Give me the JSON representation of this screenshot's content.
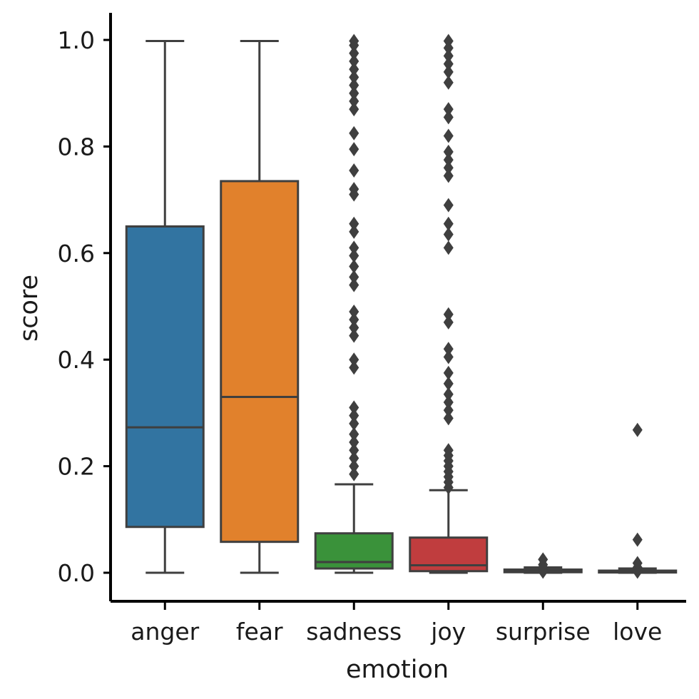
{
  "chart_data": {
    "type": "box",
    "xlabel": "emotion",
    "ylabel": "score",
    "ylim": [
      -0.05,
      1.05
    ],
    "yticks": [
      "0.0",
      "0.2",
      "0.4",
      "0.6",
      "0.8",
      "1.0"
    ],
    "grid": false,
    "categories": [
      "anger",
      "fear",
      "sadness",
      "joy",
      "surprise",
      "love"
    ],
    "series": [
      {
        "category": "anger",
        "color": "#3274a1",
        "whisker_low": 0.0,
        "q1": 0.086,
        "median": 0.273,
        "q3": 0.65,
        "whisker_high": 0.998,
        "outliers": []
      },
      {
        "category": "fear",
        "color": "#e1812c",
        "whisker_low": 0.0,
        "q1": 0.058,
        "median": 0.33,
        "q3": 0.735,
        "whisker_high": 0.998,
        "outliers": []
      },
      {
        "category": "sadness",
        "color": "#3a923a",
        "whisker_low": 0.0,
        "q1": 0.008,
        "median": 0.02,
        "q3": 0.074,
        "whisker_high": 0.166,
        "outliers": [
          0.185,
          0.2,
          0.215,
          0.23,
          0.245,
          0.26,
          0.28,
          0.295,
          0.31,
          0.385,
          0.4,
          0.445,
          0.46,
          0.475,
          0.49,
          0.54,
          0.555,
          0.575,
          0.595,
          0.61,
          0.64,
          0.655,
          0.71,
          0.72,
          0.755,
          0.795,
          0.825,
          0.87,
          0.885,
          0.9,
          0.915,
          0.93,
          0.945,
          0.96,
          0.975,
          0.99,
          0.998
        ]
      },
      {
        "category": "joy",
        "color": "#c03d3e",
        "whisker_low": 0.0,
        "q1": 0.003,
        "median": 0.014,
        "q3": 0.066,
        "whisker_high": 0.155,
        "outliers": [
          0.16,
          0.17,
          0.18,
          0.19,
          0.2,
          0.21,
          0.22,
          0.23,
          0.29,
          0.305,
          0.32,
          0.335,
          0.355,
          0.375,
          0.405,
          0.42,
          0.47,
          0.485,
          0.61,
          0.635,
          0.655,
          0.69,
          0.745,
          0.76,
          0.775,
          0.79,
          0.82,
          0.855,
          0.87,
          0.92,
          0.94,
          0.955,
          0.97,
          0.985,
          0.998
        ]
      },
      {
        "category": "surprise",
        "color": "#9372b2",
        "whisker_low": 0.0,
        "q1": 0.001,
        "median": 0.003,
        "q3": 0.006,
        "whisker_high": 0.01,
        "outliers": [
          0.002,
          0.006,
          0.01,
          0.015,
          0.025
        ]
      },
      {
        "category": "love",
        "color": "#845b53",
        "whisker_low": 0.0,
        "q1": 0.0005,
        "median": 0.001,
        "q3": 0.004,
        "whisker_high": 0.008,
        "outliers": [
          0.002,
          0.01,
          0.018,
          0.062,
          0.268
        ]
      }
    ]
  }
}
